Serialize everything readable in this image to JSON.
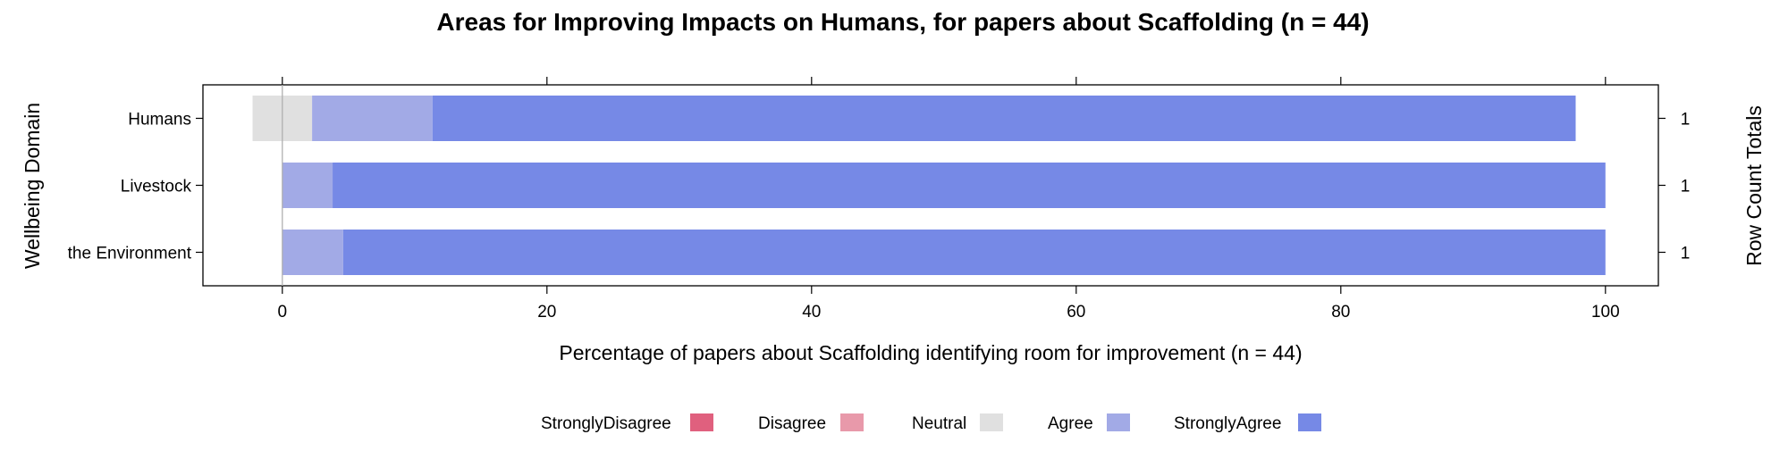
{
  "chart_data": {
    "type": "bar",
    "orientation": "horizontal",
    "stacked": "diverging",
    "title": "Areas for Improving Impacts on Humans, for papers about Scaffolding (n = 44)",
    "xlabel": "Percentage of papers about Scaffolding identifying room for improvement (n = 44)",
    "ylabel": "Wellbeing Domain",
    "y2label": "Row Count Totals",
    "xlim": [
      -6,
      104
    ],
    "xticks": [
      0,
      20,
      40,
      60,
      80,
      100
    ],
    "grid": false,
    "legend_position": "bottom",
    "categories": [
      "Humans",
      "Livestock",
      "the Environment"
    ],
    "row_totals": [
      1,
      1,
      1
    ],
    "series": [
      {
        "name": "StronglyDisagree",
        "color": "#e0607e",
        "values": [
          0,
          0,
          0
        ]
      },
      {
        "name": "Disagree",
        "color": "#e899aa",
        "values": [
          0,
          0,
          0
        ]
      },
      {
        "name": "Neutral",
        "color": "#e0e0e0",
        "values": [
          4.5,
          0,
          0
        ]
      },
      {
        "name": "Agree",
        "color": "#a2aae6",
        "values": [
          9.1,
          3.8,
          4.6
        ]
      },
      {
        "name": "StronglyAgree",
        "color": "#7689e6",
        "values": [
          86.4,
          96.2,
          95.4
        ]
      }
    ]
  }
}
